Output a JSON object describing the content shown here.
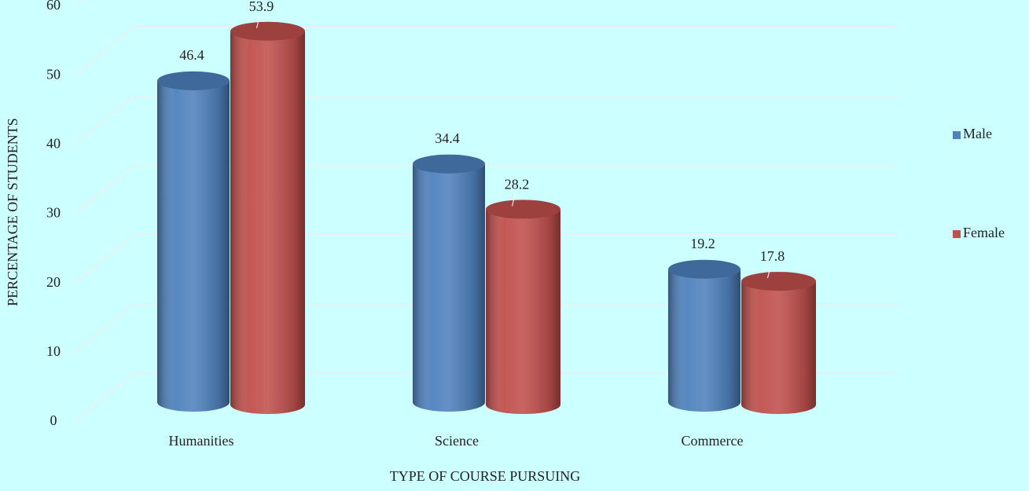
{
  "chart_data": {
    "type": "bar",
    "x_label": "TYPE OF COURSE PURSUING",
    "y_label": "PERCENTAGE OF STUDENTS",
    "categories": [
      "Humanities",
      "Science",
      "Commerce"
    ],
    "series": [
      {
        "name": "Male",
        "color": "#4f81bd",
        "values": [
          46.4,
          34.4,
          19.2
        ]
      },
      {
        "name": "Female",
        "color": "#c0504d",
        "values": [
          53.9,
          28.2,
          17.8
        ]
      }
    ],
    "ylim": [
      0,
      60
    ],
    "yticks": [
      0,
      10,
      20,
      30,
      40,
      50,
      60
    ],
    "grid": true,
    "legend": "right"
  }
}
